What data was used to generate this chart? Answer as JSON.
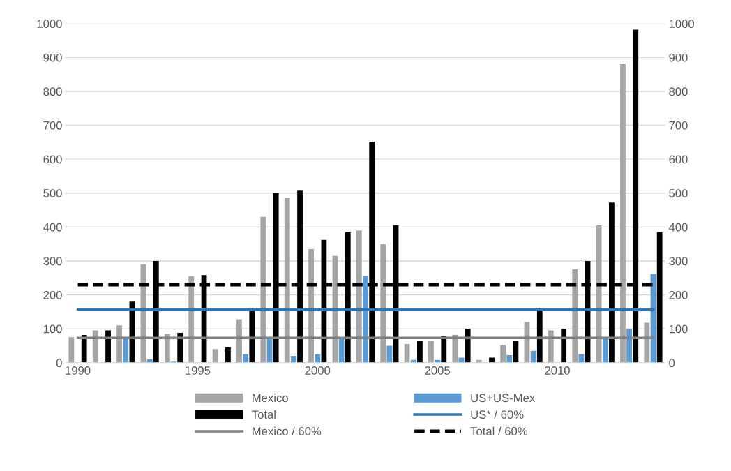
{
  "chart_data": {
    "type": "bar",
    "categories": [
      "1990",
      null,
      null,
      null,
      null,
      "1995",
      null,
      null,
      null,
      null,
      "2000",
      null,
      null,
      null,
      null,
      "2005",
      null,
      null,
      null,
      null,
      "2010",
      null,
      null,
      null,
      null
    ],
    "series": [
      {
        "name": "Mexico",
        "color": "#a5a5a5",
        "values": [
          75,
          95,
          110,
          290,
          85,
          255,
          40,
          128,
          430,
          485,
          335,
          315,
          390,
          350,
          55,
          65,
          82,
          8,
          52,
          120,
          95,
          275,
          405,
          880,
          118
        ]
      },
      {
        "name": "US+US-Mex",
        "color": "#5b9bd5",
        "values": [
          null,
          0,
          70,
          10,
          3,
          null,
          null,
          25,
          70,
          20,
          25,
          70,
          255,
          50,
          8,
          8,
          15,
          null,
          22,
          35,
          null,
          25,
          75,
          100,
          262
        ]
      },
      {
        "name": "Total",
        "color": "#000000",
        "values": [
          82,
          95,
          180,
          300,
          88,
          258,
          45,
          153,
          500,
          507,
          362,
          385,
          652,
          405,
          65,
          78,
          100,
          15,
          65,
          153,
          100,
          300,
          472,
          982,
          385
        ]
      },
      {
        "name": "US* / 60%",
        "type": "line",
        "line_style": "solid",
        "color": "#2e75b6",
        "values": [
          157,
          157,
          157,
          157,
          157,
          157,
          157,
          157,
          157,
          157,
          157,
          157,
          157,
          157,
          157,
          157,
          157,
          157,
          157,
          157,
          157,
          157,
          157,
          157,
          157
        ]
      },
      {
        "name": "Mexico / 60%",
        "type": "line",
        "line_style": "solid",
        "color": "#7f7f7f",
        "values": [
          73,
          73,
          73,
          73,
          73,
          73,
          73,
          73,
          73,
          73,
          73,
          73,
          73,
          73,
          73,
          73,
          73,
          73,
          73,
          73,
          73,
          73,
          73,
          73,
          73
        ]
      },
      {
        "name": "Total / 60%",
        "type": "line",
        "line_style": "dashed",
        "color": "#000000",
        "values": [
          230,
          230,
          230,
          230,
          230,
          230,
          230,
          230,
          230,
          230,
          230,
          230,
          230,
          230,
          230,
          230,
          230,
          230,
          230,
          230,
          230,
          230,
          230,
          230,
          230
        ]
      }
    ],
    "ylim": [
      0,
      1000
    ],
    "yticks": [
      0,
      100,
      200,
      300,
      400,
      500,
      600,
      700,
      800,
      900,
      1000
    ],
    "y2lim": [
      0,
      1000
    ],
    "y2ticks": [
      0,
      100,
      200,
      300,
      400,
      500,
      600,
      700,
      800,
      900,
      1000
    ],
    "grid": "y",
    "legend": "bottom",
    "marker": "none"
  }
}
